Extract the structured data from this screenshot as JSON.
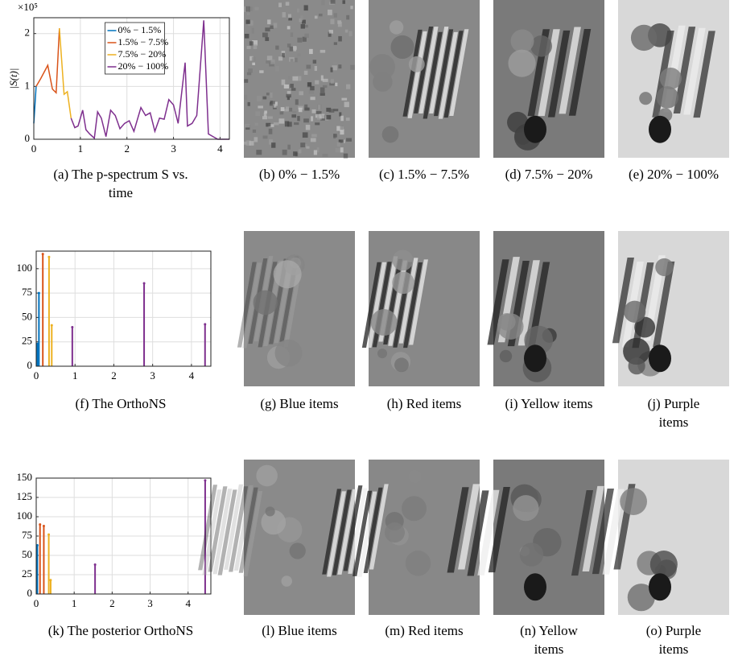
{
  "chart_data": [
    {
      "type": "line",
      "ylabel": "|S(t)|",
      "y_scale_label": "×10⁵",
      "caption": [
        "(a) The p-spectrum S vs.",
        "time"
      ],
      "xlim": [
        0,
        4.2
      ],
      "xticks": [
        0,
        1,
        2,
        3,
        4
      ],
      "ylim": [
        0,
        2.3
      ],
      "yticks": [
        0,
        1,
        2
      ],
      "grid": true,
      "legend": "north",
      "series": [
        {
          "name": "0% − 1.5%",
          "color": "#0072bd",
          "x": [
            0,
            0.05
          ],
          "values": [
            0.3,
            1.0
          ]
        },
        {
          "name": "1.5% − 7.5%",
          "color": "#d95319",
          "x": [
            0.05,
            0.15,
            0.3,
            0.4,
            0.48,
            0.55
          ],
          "values": [
            1.0,
            1.15,
            1.4,
            0.95,
            0.88,
            2.1
          ]
        },
        {
          "name": "7.5% − 20%",
          "color": "#edb120",
          "x": [
            0.55,
            0.65,
            0.72,
            0.8
          ],
          "values": [
            2.1,
            0.85,
            0.9,
            0.4
          ]
        },
        {
          "name": "20% − 100%",
          "color": "#7e2f8e",
          "x": [
            0.8,
            0.88,
            0.95,
            1.05,
            1.12,
            1.2,
            1.3,
            1.37,
            1.45,
            1.55,
            1.65,
            1.75,
            1.85,
            1.95,
            2.05,
            2.15,
            2.3,
            2.4,
            2.5,
            2.6,
            2.7,
            2.8,
            2.9,
            3.0,
            3.1,
            3.25,
            3.3,
            3.4,
            3.5,
            3.65,
            3.75,
            3.85,
            3.95,
            4.2
          ],
          "values": [
            0.4,
            0.22,
            0.25,
            0.55,
            0.18,
            0.1,
            0.02,
            0.52,
            0.4,
            0.05,
            0.55,
            0.45,
            0.2,
            0.3,
            0.35,
            0.15,
            0.6,
            0.45,
            0.5,
            0.15,
            0.4,
            0.38,
            0.75,
            0.65,
            0.3,
            1.45,
            0.25,
            0.3,
            0.45,
            2.25,
            0.1,
            0.05,
            0.0,
            0.0
          ]
        }
      ]
    },
    {
      "type": "stem",
      "caption": [
        "(f) The OrthoNS"
      ],
      "xlim": [
        0,
        4.5
      ],
      "xticks": [
        0,
        1,
        2,
        3,
        4
      ],
      "ylim": [
        0,
        118
      ],
      "yticks": [
        0,
        25,
        50,
        75,
        100
      ],
      "grid": true,
      "series": [
        {
          "color": "#0072bd",
          "x": [
            0.03,
            0.07
          ],
          "values": [
            23,
            75
          ]
        },
        {
          "color": "#d95319",
          "x": [
            0.17
          ],
          "values": [
            115
          ]
        },
        {
          "color": "#edb120",
          "x": [
            0.33,
            0.4
          ],
          "values": [
            112,
            42
          ]
        },
        {
          "color": "#7e2f8e",
          "x": [
            0.93,
            2.78,
            4.35
          ],
          "values": [
            40,
            85,
            43
          ]
        }
      ]
    },
    {
      "type": "stem",
      "caption": [
        "(k) The posterior OrthoNS"
      ],
      "xlim": [
        0,
        4.6
      ],
      "xticks": [
        0,
        1,
        2,
        3,
        4
      ],
      "ylim": [
        0,
        150
      ],
      "yticks": [
        0,
        25,
        50,
        75,
        100,
        125,
        150
      ],
      "grid": true,
      "series": [
        {
          "color": "#0072bd",
          "x": [
            0.03
          ],
          "values": [
            63
          ]
        },
        {
          "color": "#d95319",
          "x": [
            0.1,
            0.2
          ],
          "values": [
            90,
            88
          ]
        },
        {
          "color": "#edb120",
          "x": [
            0.33,
            0.38
          ],
          "values": [
            77,
            18
          ]
        },
        {
          "color": "#7e2f8e",
          "x": [
            1.55,
            4.45
          ],
          "values": [
            38,
            147
          ]
        }
      ]
    }
  ],
  "panels": [
    {
      "caption": [
        "(b) 0% − 1.5%"
      ]
    },
    {
      "caption": [
        "(c) 1.5% − 7.5%"
      ]
    },
    {
      "caption": [
        "(d) 7.5% − 20%"
      ]
    },
    {
      "caption": [
        "(e) 20% − 100%"
      ]
    },
    {
      "caption": [
        "(g) Blue items"
      ]
    },
    {
      "caption": [
        "(h) Red items"
      ]
    },
    {
      "caption": [
        "(i) Yellow items"
      ]
    },
    {
      "caption": [
        "(j) Purple",
        "items"
      ]
    },
    {
      "caption": [
        "(l) Blue items"
      ]
    },
    {
      "caption": [
        "(m) Red items"
      ]
    },
    {
      "caption": [
        "(n) Yellow",
        "items"
      ]
    },
    {
      "caption": [
        "(o) Purple",
        "items"
      ]
    }
  ]
}
